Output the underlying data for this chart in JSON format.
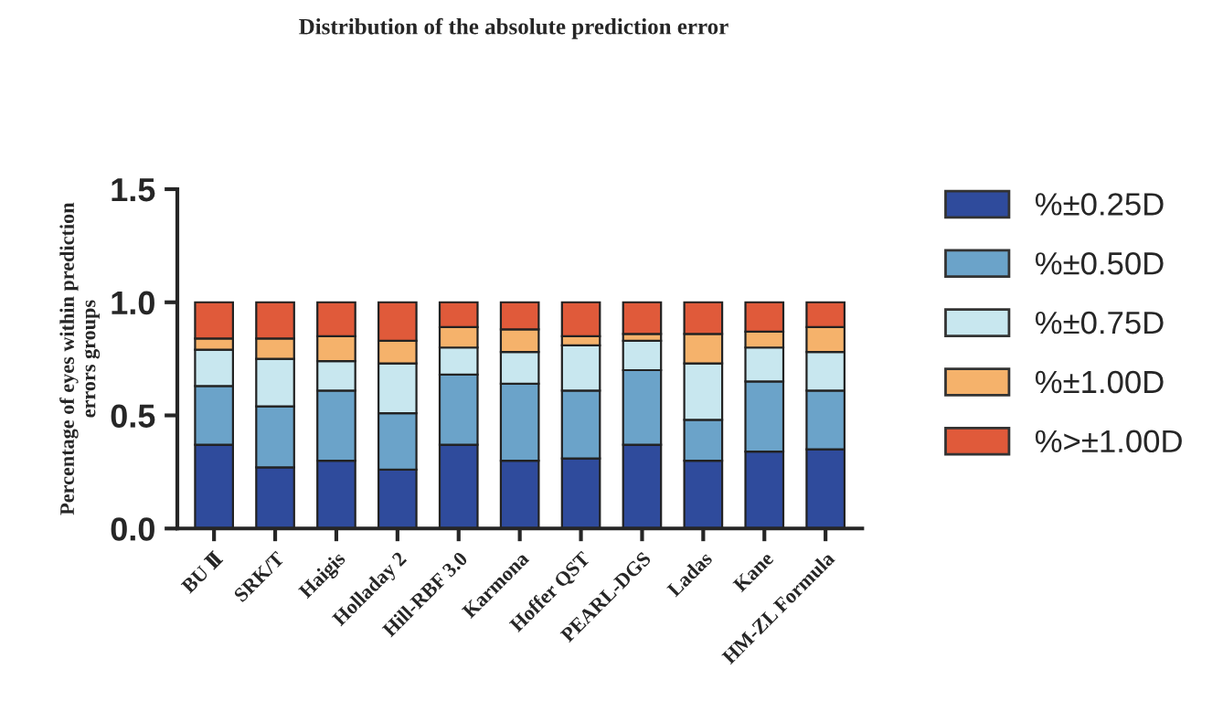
{
  "chart_data": {
    "type": "bar",
    "stacked": true,
    "title": "Distribution of the absolute prediction error",
    "ylabel": "Percentage of eyes within prediction\nerrors groups",
    "categories": [
      "BU Ⅱ",
      "SRK/T",
      "Haigis",
      "Holladay 2",
      "Hill-RBF 3.0",
      "Karmona",
      "Hoffer QST",
      "PEARL-DGS",
      "Ladas",
      "Kane",
      "HM-ZL Formula"
    ],
    "series": [
      {
        "name": "%±0.25D",
        "color": "#2f4b9c",
        "values": [
          0.37,
          0.27,
          0.3,
          0.26,
          0.37,
          0.3,
          0.31,
          0.37,
          0.3,
          0.34,
          0.35
        ]
      },
      {
        "name": "%±0.50D",
        "color": "#6ba3c9",
        "values": [
          0.26,
          0.27,
          0.31,
          0.25,
          0.31,
          0.34,
          0.3,
          0.33,
          0.18,
          0.31,
          0.26
        ]
      },
      {
        "name": "%±0.75D",
        "color": "#c8e7ef",
        "values": [
          0.16,
          0.21,
          0.13,
          0.22,
          0.12,
          0.14,
          0.2,
          0.13,
          0.25,
          0.15,
          0.17
        ]
      },
      {
        "name": "%±1.00D",
        "color": "#f5b26b",
        "values": [
          0.05,
          0.09,
          0.11,
          0.1,
          0.09,
          0.1,
          0.04,
          0.03,
          0.13,
          0.07,
          0.11
        ]
      },
      {
        "name": "%>±1.00D",
        "color": "#e05a3a",
        "values": [
          0.16,
          0.16,
          0.15,
          0.17,
          0.11,
          0.12,
          0.15,
          0.14,
          0.14,
          0.13,
          0.11
        ]
      }
    ],
    "ylim": [
      0,
      1.5
    ],
    "yticks": [
      {
        "value": 0,
        "label": "0.0"
      },
      {
        "value": 0.5,
        "label": "0.5"
      },
      {
        "value": 1.0,
        "label": "1.0"
      },
      {
        "value": 1.5,
        "label": "1.5"
      }
    ],
    "grid": false,
    "legend": "right"
  }
}
